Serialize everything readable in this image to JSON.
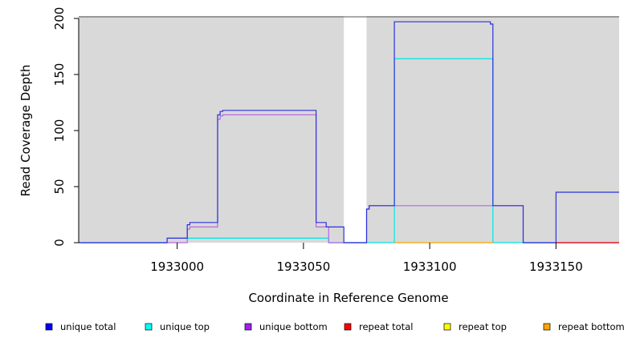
{
  "chart_data": {
    "type": "line",
    "title": "",
    "xlabel": "Coordinate in Reference Genome",
    "ylabel": "Read Coverage Depth",
    "xlim": [
      1932961,
      1933175
    ],
    "ylim": [
      0,
      200
    ],
    "x_ticks": [
      1933000,
      1933050,
      1933100,
      1933150
    ],
    "y_ticks": [
      0,
      50,
      100,
      150,
      200
    ],
    "grid": false,
    "shaded_regions": [
      [
        1932961,
        1933066
      ],
      [
        1933075,
        1933175
      ]
    ],
    "shade_color": "#d9d9d9",
    "legend_position": "bottom",
    "series": [
      {
        "name": "unique top",
        "color": "#00e5e5",
        "points": [
          [
            1932961,
            0
          ],
          [
            1932996,
            0
          ],
          [
            1932996,
            4
          ],
          [
            1933060,
            4
          ],
          [
            1933060,
            0
          ],
          [
            1933086,
            0
          ],
          [
            1933086,
            164
          ],
          [
            1933125,
            164
          ],
          [
            1933125,
            0
          ],
          [
            1933175,
            0
          ]
        ]
      },
      {
        "name": "unique bottom",
        "color": "#b469e6",
        "points": [
          [
            1932961,
            0
          ],
          [
            1933004,
            0
          ],
          [
            1933004,
            12
          ],
          [
            1933005,
            12
          ],
          [
            1933005,
            14
          ],
          [
            1933016,
            14
          ],
          [
            1933016,
            110
          ],
          [
            1933017,
            110
          ],
          [
            1933017,
            113
          ],
          [
            1933018,
            113
          ],
          [
            1933018,
            114
          ],
          [
            1933055,
            114
          ],
          [
            1933055,
            14
          ],
          [
            1933060,
            14
          ],
          [
            1933060,
            0
          ],
          [
            1933075,
            0
          ],
          [
            1933075,
            30
          ],
          [
            1933076,
            30
          ],
          [
            1933076,
            33
          ],
          [
            1933137,
            33
          ],
          [
            1933137,
            0
          ],
          [
            1933175,
            0
          ]
        ]
      },
      {
        "name": "repeat total",
        "color": "#ff0000",
        "points": [
          [
            1933150,
            0
          ],
          [
            1933175,
            0
          ]
        ]
      },
      {
        "name": "repeat bottom",
        "color": "#ffa500",
        "points": [
          [
            1933086,
            0
          ],
          [
            1933125,
            0
          ]
        ]
      },
      {
        "name": "unique total",
        "color": "#2a33dd",
        "points": [
          [
            1932961,
            0
          ],
          [
            1932996,
            0
          ],
          [
            1932996,
            4
          ],
          [
            1933004,
            4
          ],
          [
            1933004,
            16
          ],
          [
            1933005,
            16
          ],
          [
            1933005,
            18
          ],
          [
            1933016,
            18
          ],
          [
            1933016,
            114
          ],
          [
            1933017,
            114
          ],
          [
            1933017,
            117
          ],
          [
            1933018,
            117
          ],
          [
            1933018,
            118
          ],
          [
            1933055,
            118
          ],
          [
            1933055,
            18
          ],
          [
            1933059,
            18
          ],
          [
            1933059,
            14
          ],
          [
            1933066,
            14
          ],
          [
            1933066,
            0
          ],
          [
            1933075,
            0
          ],
          [
            1933075,
            30
          ],
          [
            1933076,
            30
          ],
          [
            1933076,
            33
          ],
          [
            1933086,
            33
          ],
          [
            1933086,
            197
          ],
          [
            1933124,
            197
          ],
          [
            1933124,
            195
          ],
          [
            1933125,
            195
          ],
          [
            1933125,
            33
          ],
          [
            1933137,
            33
          ],
          [
            1933137,
            0
          ],
          [
            1933150,
            0
          ],
          [
            1933150,
            45
          ],
          [
            1933175,
            45
          ]
        ]
      }
    ],
    "legend": [
      {
        "label": "unique total",
        "color": "#0000ff"
      },
      {
        "label": "unique top",
        "color": "#00ffff"
      },
      {
        "label": "unique bottom",
        "color": "#a020f0"
      },
      {
        "label": "repeat total",
        "color": "#ff0000"
      },
      {
        "label": "repeat top",
        "color": "#ffff00"
      },
      {
        "label": "repeat bottom",
        "color": "#ffa500"
      }
    ]
  }
}
